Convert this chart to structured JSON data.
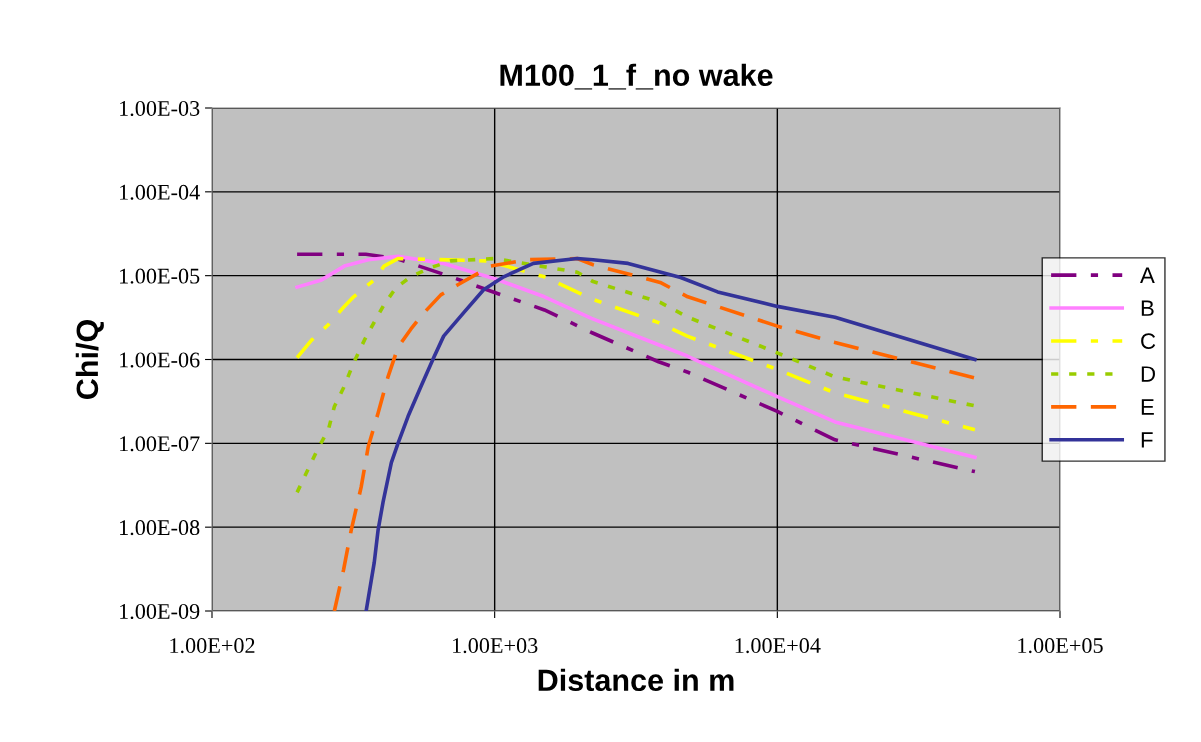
{
  "chart_data": {
    "type": "line",
    "title": "M100_1_f_no wake",
    "xlabel": "Distance in m",
    "ylabel": "Chi/Q",
    "log": "xy",
    "grid": true,
    "legend": "right",
    "marker": "none",
    "xlim": [
      100,
      100000
    ],
    "xticks": [
      {
        "value": 100,
        "label": "1.00E+02"
      },
      {
        "value": 1000,
        "label": "1.00E+03"
      },
      {
        "value": 10000,
        "label": "1.00E+04"
      },
      {
        "value": 100000,
        "label": "1.00E+05"
      }
    ],
    "ylim": [
      1e-09,
      0.001
    ],
    "yticks": [
      {
        "value": 1e-09,
        "label": "1.00E-09"
      },
      {
        "value": 1e-08,
        "label": "1.00E-08"
      },
      {
        "value": 1e-07,
        "label": "1.00E-07"
      },
      {
        "value": 1e-06,
        "label": "1.00E-06"
      },
      {
        "value": 1e-05,
        "label": "1.00E-05"
      },
      {
        "value": 0.0001,
        "label": "1.00E-04"
      },
      {
        "value": 0.001,
        "label": "1.00E-03"
      }
    ],
    "series": [
      {
        "name": "A",
        "color": "#800080",
        "line_style": "dashdot",
        "x": [
          200,
          350,
          450,
          700,
          1000,
          1500,
          2200,
          3800,
          4800,
          10000,
          16000,
          50000
        ],
        "values": [
          1.8e-05,
          1.8e-05,
          1.6e-05,
          9.7e-06,
          6.3e-06,
          3.9e-06,
          2.1e-06,
          9.4e-07,
          7.1e-07,
          2.4e-07,
          1.1e-07,
          4.6e-08
        ]
      },
      {
        "name": "B",
        "color": "#ff80ff",
        "line_style": "solid",
        "x": [
          200,
          244,
          294,
          357,
          455,
          660,
          1000,
          1500,
          2200,
          3800,
          4800,
          10000,
          16000,
          50000
        ],
        "values": [
          7.3e-06,
          8.9e-06,
          1.3e-05,
          1.55e-05,
          1.7e-05,
          1.4e-05,
          9.2e-06,
          5.6e-06,
          3.1e-06,
          1.5e-06,
          1.1e-06,
          3.6e-07,
          1.8e-07,
          6.8e-08
        ]
      },
      {
        "name": "C",
        "color": "#ffff00",
        "line_style": "dashdot",
        "x": [
          200,
          225,
          258,
          292,
          317,
          375,
          406,
          455,
          944,
          1500,
          2200,
          3800,
          4800,
          10000,
          16000,
          50000
        ],
        "values": [
          1.05e-06,
          1.7e-06,
          2.6e-06,
          4.2e-06,
          5.6e-06,
          8.9e-06,
          1.3e-05,
          1.6e-05,
          1.5e-05,
          9.7e-06,
          5.3e-06,
          2.75e-06,
          1.9e-06,
          7.6e-07,
          4e-07,
          1.45e-07
        ]
      },
      {
        "name": "D",
        "color": "#99cc00",
        "line_style": "dotted",
        "x": [
          200,
          220,
          238,
          258,
          271,
          292,
          317,
          346,
          375,
          406,
          448,
          505,
          595,
          700,
          1000,
          1960,
          2230,
          3850,
          4820,
          10000,
          16000,
          50000
        ],
        "values": [
          2.6e-08,
          5.1e-08,
          8.9e-08,
          1.45e-07,
          2.75e-07,
          4.6e-07,
          9.1e-07,
          1.7e-06,
          2.8e-06,
          4.5e-06,
          7.2e-06,
          9.7e-06,
          1.25e-05,
          1.5e-05,
          1.6e-05,
          1.1e-05,
          8.5e-06,
          4.8e-06,
          3.2e-06,
          1.2e-06,
          6.2e-07,
          2.8e-07
        ]
      },
      {
        "name": "E",
        "color": "#ff6600",
        "line_style": "dashed",
        "x": [
          271,
          292,
          311,
          337,
          357,
          387,
          420,
          455,
          505,
          562,
          645,
          741,
          968,
          1306,
          1960,
          2230,
          3850,
          4820,
          10000,
          16000,
          50000
        ],
        "values": [
          1e-09,
          3.1e-09,
          9.3e-09,
          3e-08,
          9.1e-08,
          2.3e-07,
          6.3e-07,
          1.4e-06,
          2.3e-06,
          3.6e-06,
          5.9e-06,
          7.8e-06,
          1.3e-05,
          1.55e-05,
          1.6e-05,
          1.35e-05,
          8.3e-06,
          5.6e-06,
          2.5e-06,
          1.6e-06,
          6e-07
        ]
      },
      {
        "name": "F",
        "color": "#333399",
        "line_style": "solid",
        "x": [
          351,
          375,
          387,
          403,
          431,
          455,
          494,
          549,
          610,
          660,
          776,
          914,
          1076,
          1371,
          1960,
          2230,
          2965,
          4550,
          6150,
          10000,
          16000,
          50000
        ],
        "values": [
          1e-09,
          3.8e-09,
          9.3e-09,
          2e-08,
          5.9e-08,
          1e-07,
          2.1e-07,
          4.8e-07,
          1.07e-06,
          1.9e-06,
          3.6e-06,
          6.8e-06,
          9.7e-06,
          1.4e-05,
          1.6e-05,
          1.55e-05,
          1.4e-05,
          9.5e-06,
          6.4e-06,
          4.3e-06,
          3.2e-06,
          1e-06
        ]
      }
    ]
  }
}
